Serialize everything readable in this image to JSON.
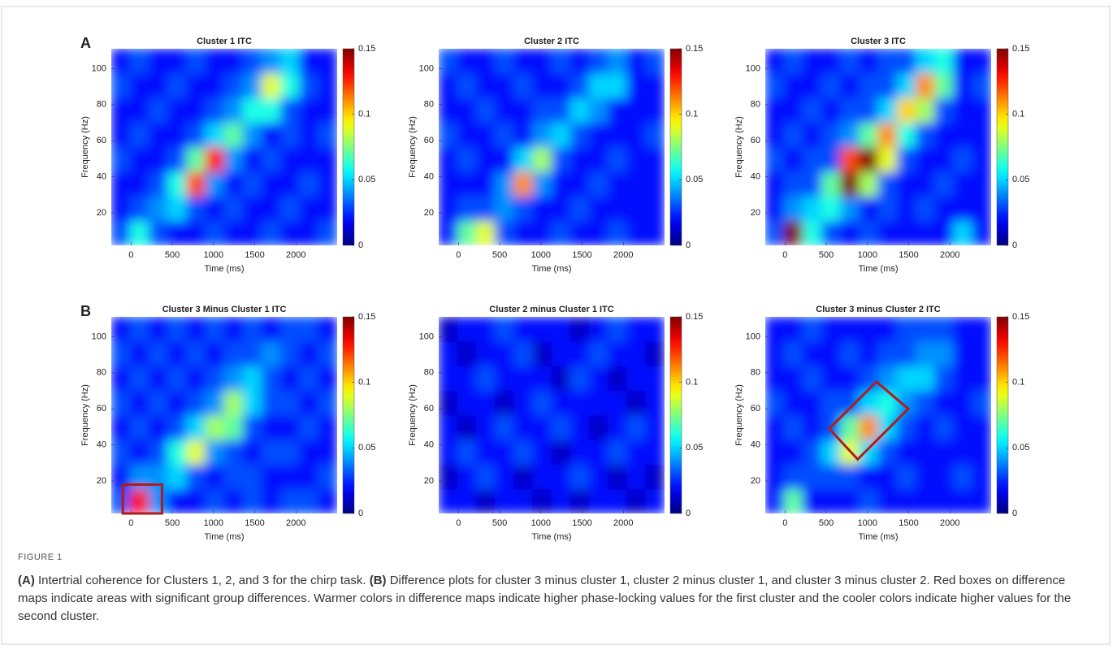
{
  "chart_data": [
    {
      "type": "heatmap",
      "panel": "A",
      "title": "Cluster 1 ITC",
      "xlabel": "Time (ms)",
      "ylabel": "Frequency (Hz)",
      "colormap": "jet",
      "xlim": [
        -240,
        2500
      ],
      "ylim": [
        2,
        111
      ],
      "xticks": [
        0,
        500,
        1000,
        1500,
        2000
      ],
      "yticks": [
        20,
        40,
        60,
        80,
        100
      ],
      "clim": [
        0,
        0.15
      ],
      "cticks": [
        0,
        0.05,
        0.1,
        0.15
      ],
      "z": [
        [
          0.03,
          0.06,
          0.03,
          0.02,
          0.02,
          0.03,
          0.02,
          0.02,
          0.03,
          0.02,
          0.02,
          0.03
        ],
        [
          0.02,
          0.03,
          0.04,
          0.05,
          0.03,
          0.02,
          0.03,
          0.02,
          0.02,
          0.03,
          0.02,
          0.02
        ],
        [
          0.02,
          0.02,
          0.03,
          0.06,
          0.12,
          0.04,
          0.02,
          0.03,
          0.02,
          0.02,
          0.03,
          0.02
        ],
        [
          0.03,
          0.02,
          0.02,
          0.03,
          0.07,
          0.13,
          0.04,
          0.02,
          0.03,
          0.02,
          0.02,
          0.02
        ],
        [
          0.02,
          0.03,
          0.02,
          0.02,
          0.03,
          0.05,
          0.07,
          0.04,
          0.02,
          0.03,
          0.02,
          0.03
        ],
        [
          0.02,
          0.02,
          0.03,
          0.02,
          0.02,
          0.03,
          0.04,
          0.06,
          0.06,
          0.03,
          0.02,
          0.02
        ],
        [
          0.03,
          0.02,
          0.02,
          0.03,
          0.02,
          0.02,
          0.03,
          0.04,
          0.09,
          0.06,
          0.03,
          0.02
        ],
        [
          0.02,
          0.03,
          0.02,
          0.02,
          0.03,
          0.02,
          0.02,
          0.03,
          0.04,
          0.05,
          0.02,
          0.02
        ]
      ]
    },
    {
      "type": "heatmap",
      "title": "Cluster 2 ITC",
      "xlabel": "Time (ms)",
      "ylabel": "Frequency (Hz)",
      "colormap": "jet",
      "xlim": [
        -240,
        2500
      ],
      "ylim": [
        2,
        111
      ],
      "xticks": [
        0,
        500,
        1000,
        1500,
        2000
      ],
      "yticks": [
        20,
        40,
        60,
        80,
        100
      ],
      "clim": [
        0,
        0.15
      ],
      "cticks": [
        0,
        0.05,
        0.1,
        0.15
      ],
      "z": [
        [
          0.02,
          0.07,
          0.09,
          0.03,
          0.02,
          0.02,
          0.03,
          0.02,
          0.02,
          0.03,
          0.02,
          0.02
        ],
        [
          0.02,
          0.03,
          0.03,
          0.04,
          0.03,
          0.02,
          0.02,
          0.03,
          0.02,
          0.02,
          0.02,
          0.02
        ],
        [
          0.02,
          0.02,
          0.02,
          0.04,
          0.11,
          0.04,
          0.02,
          0.02,
          0.03,
          0.02,
          0.02,
          0.02
        ],
        [
          0.02,
          0.03,
          0.02,
          0.02,
          0.05,
          0.08,
          0.03,
          0.02,
          0.02,
          0.03,
          0.02,
          0.02
        ],
        [
          0.03,
          0.02,
          0.02,
          0.03,
          0.02,
          0.04,
          0.05,
          0.03,
          0.02,
          0.02,
          0.02,
          0.03
        ],
        [
          0.02,
          0.02,
          0.03,
          0.02,
          0.02,
          0.03,
          0.03,
          0.05,
          0.04,
          0.02,
          0.02,
          0.02
        ],
        [
          0.02,
          0.03,
          0.02,
          0.02,
          0.03,
          0.02,
          0.02,
          0.03,
          0.05,
          0.05,
          0.02,
          0.02
        ],
        [
          0.03,
          0.02,
          0.02,
          0.03,
          0.02,
          0.02,
          0.03,
          0.02,
          0.03,
          0.04,
          0.02,
          0.03
        ]
      ]
    },
    {
      "type": "heatmap",
      "title": "Cluster 3 ITC",
      "xlabel": "Time (ms)",
      "ylabel": "Frequency (Hz)",
      "colormap": "jet",
      "xlim": [
        -240,
        2500
      ],
      "ylim": [
        2,
        111
      ],
      "xticks": [
        0,
        500,
        1000,
        1500,
        2000
      ],
      "yticks": [
        20,
        40,
        60,
        80,
        100
      ],
      "clim": [
        0,
        0.15
      ],
      "cticks": [
        0,
        0.05,
        0.1,
        0.15
      ],
      "z": [
        [
          0.03,
          0.15,
          0.06,
          0.03,
          0.02,
          0.03,
          0.02,
          0.02,
          0.02,
          0.02,
          0.05,
          0.02
        ],
        [
          0.02,
          0.04,
          0.05,
          0.06,
          0.04,
          0.02,
          0.03,
          0.02,
          0.03,
          0.02,
          0.02,
          0.02
        ],
        [
          0.02,
          0.03,
          0.03,
          0.07,
          0.15,
          0.08,
          0.03,
          0.02,
          0.02,
          0.03,
          0.02,
          0.02
        ],
        [
          0.03,
          0.02,
          0.03,
          0.03,
          0.12,
          0.15,
          0.09,
          0.03,
          0.02,
          0.02,
          0.03,
          0.02
        ],
        [
          0.02,
          0.03,
          0.02,
          0.03,
          0.04,
          0.07,
          0.11,
          0.06,
          0.03,
          0.02,
          0.02,
          0.02
        ],
        [
          0.02,
          0.02,
          0.03,
          0.02,
          0.03,
          0.03,
          0.05,
          0.1,
          0.08,
          0.03,
          0.02,
          0.02
        ],
        [
          0.03,
          0.02,
          0.02,
          0.03,
          0.02,
          0.03,
          0.03,
          0.05,
          0.11,
          0.07,
          0.02,
          0.03
        ],
        [
          0.02,
          0.03,
          0.02,
          0.02,
          0.03,
          0.02,
          0.03,
          0.03,
          0.05,
          0.06,
          0.02,
          0.02
        ]
      ]
    },
    {
      "type": "heatmap",
      "panel": "B",
      "title": "Cluster 3 Minus Cluster 1 ITC",
      "xlabel": "Time (ms)",
      "ylabel": "Frequency (Hz)",
      "colormap": "jet",
      "xlim": [
        -240,
        2500
      ],
      "ylim": [
        2,
        111
      ],
      "xticks": [
        0,
        500,
        1000,
        1500,
        2000
      ],
      "yticks": [
        20,
        40,
        60,
        80,
        100
      ],
      "clim": [
        0,
        0.15
      ],
      "cticks": [
        0,
        0.05,
        0.1,
        0.15
      ],
      "z": [
        [
          0.03,
          0.13,
          0.04,
          0.02,
          0.02,
          0.03,
          0.02,
          0.03,
          0.02,
          0.03,
          0.03,
          0.02
        ],
        [
          0.02,
          0.04,
          0.04,
          0.05,
          0.03,
          0.02,
          0.03,
          0.03,
          0.02,
          0.02,
          0.02,
          0.03
        ],
        [
          0.03,
          0.02,
          0.03,
          0.06,
          0.09,
          0.04,
          0.03,
          0.02,
          0.03,
          0.03,
          0.02,
          0.02
        ],
        [
          0.02,
          0.03,
          0.02,
          0.03,
          0.05,
          0.08,
          0.07,
          0.03,
          0.02,
          0.02,
          0.03,
          0.02
        ],
        [
          0.03,
          0.02,
          0.03,
          0.02,
          0.03,
          0.04,
          0.08,
          0.05,
          0.03,
          0.03,
          0.02,
          0.03
        ],
        [
          0.02,
          0.03,
          0.02,
          0.03,
          0.02,
          0.03,
          0.04,
          0.05,
          0.03,
          0.02,
          0.03,
          0.02
        ],
        [
          0.03,
          0.02,
          0.03,
          0.02,
          0.03,
          0.02,
          0.03,
          0.03,
          0.04,
          0.03,
          0.02,
          0.03
        ],
        [
          0.02,
          0.03,
          0.02,
          0.03,
          0.02,
          0.03,
          0.02,
          0.03,
          0.02,
          0.03,
          0.03,
          0.02
        ]
      ],
      "highlight": {
        "x": [
          -100,
          375,
          375,
          -100
        ],
        "y": [
          2,
          2,
          18,
          18
        ],
        "color": "#b01c1c"
      }
    },
    {
      "type": "heatmap",
      "title": "Cluster 2 minus Cluster 1 ITC",
      "xlabel": "Time (ms)",
      "ylabel": "Frequency (Hz)",
      "colormap": "jet",
      "xlim": [
        -240,
        2500
      ],
      "ylim": [
        2,
        111
      ],
      "xticks": [
        0,
        500,
        1000,
        1500,
        2000
      ],
      "yticks": [
        20,
        40,
        60,
        80,
        100
      ],
      "clim": [
        0,
        0.15
      ],
      "cticks": [
        0,
        0.05,
        0.1,
        0.15
      ],
      "z": [
        [
          0.02,
          0.02,
          0.01,
          0.02,
          0.02,
          0.01,
          0.02,
          0.01,
          0.02,
          0.02,
          0.01,
          0.02
        ],
        [
          0.01,
          0.02,
          0.03,
          0.02,
          0.01,
          0.02,
          0.02,
          0.03,
          0.02,
          0.01,
          0.02,
          0.01
        ],
        [
          0.02,
          0.03,
          0.02,
          0.02,
          0.03,
          0.02,
          0.01,
          0.02,
          0.02,
          0.03,
          0.02,
          0.02
        ],
        [
          0.02,
          0.01,
          0.02,
          0.03,
          0.02,
          0.02,
          0.03,
          0.02,
          0.01,
          0.02,
          0.03,
          0.02
        ],
        [
          0.01,
          0.02,
          0.02,
          0.01,
          0.02,
          0.03,
          0.02,
          0.02,
          0.02,
          0.02,
          0.01,
          0.02
        ],
        [
          0.02,
          0.02,
          0.03,
          0.02,
          0.02,
          0.02,
          0.01,
          0.03,
          0.02,
          0.01,
          0.02,
          0.02
        ],
        [
          0.02,
          0.01,
          0.02,
          0.02,
          0.03,
          0.01,
          0.02,
          0.02,
          0.03,
          0.02,
          0.02,
          0.01
        ],
        [
          0.01,
          0.02,
          0.02,
          0.03,
          0.02,
          0.02,
          0.02,
          0.01,
          0.02,
          0.03,
          0.02,
          0.02
        ]
      ]
    },
    {
      "type": "heatmap",
      "title": "Cluster 3 minus Cluster 2 ITC",
      "xlabel": "Time (ms)",
      "ylabel": "Frequency (Hz)",
      "colormap": "jet",
      "xlim": [
        -240,
        2500
      ],
      "ylim": [
        2,
        111
      ],
      "xticks": [
        0,
        500,
        1000,
        1500,
        2000
      ],
      "yticks": [
        20,
        40,
        60,
        80,
        100
      ],
      "clim": [
        0,
        0.15
      ],
      "cticks": [
        0,
        0.05,
        0.1,
        0.15
      ],
      "z": [
        [
          0.02,
          0.07,
          0.02,
          0.02,
          0.02,
          0.03,
          0.02,
          0.02,
          0.02,
          0.02,
          0.02,
          0.02
        ],
        [
          0.02,
          0.03,
          0.03,
          0.03,
          0.03,
          0.02,
          0.02,
          0.03,
          0.02,
          0.02,
          0.03,
          0.02
        ],
        [
          0.02,
          0.02,
          0.03,
          0.05,
          0.09,
          0.05,
          0.03,
          0.02,
          0.02,
          0.02,
          0.02,
          0.02
        ],
        [
          0.02,
          0.03,
          0.02,
          0.03,
          0.07,
          0.11,
          0.05,
          0.03,
          0.02,
          0.03,
          0.02,
          0.02
        ],
        [
          0.03,
          0.02,
          0.02,
          0.03,
          0.03,
          0.05,
          0.06,
          0.04,
          0.03,
          0.02,
          0.02,
          0.03
        ],
        [
          0.02,
          0.02,
          0.03,
          0.02,
          0.02,
          0.03,
          0.04,
          0.05,
          0.05,
          0.03,
          0.02,
          0.02
        ],
        [
          0.02,
          0.03,
          0.02,
          0.02,
          0.03,
          0.02,
          0.03,
          0.03,
          0.04,
          0.04,
          0.02,
          0.02
        ],
        [
          0.02,
          0.02,
          0.03,
          0.02,
          0.02,
          0.02,
          0.02,
          0.03,
          0.03,
          0.03,
          0.02,
          0.02
        ]
      ],
      "highlight": {
        "x": [
          535,
          1109,
          1495,
          881
        ],
        "y": [
          49,
          75,
          60,
          32
        ],
        "color": "#b01c1c"
      }
    }
  ],
  "caption": {
    "label": "FIGURE 1",
    "parts": [
      {
        "tag": "(A)",
        "text": "Intertrial coherence for Clusters 1, 2, and 3 for the chirp task."
      },
      {
        "tag": "(B)",
        "text": "Difference plots for cluster 3 minus cluster 1, cluster 2 minus cluster 1, and cluster 3 minus cluster 2. Red boxes on difference maps indicate areas with significant group differences. Warmer colors in difference maps indicate higher phase-locking values for the first cluster and the cooler colors indicate higher values for the second cluster."
      }
    ]
  }
}
